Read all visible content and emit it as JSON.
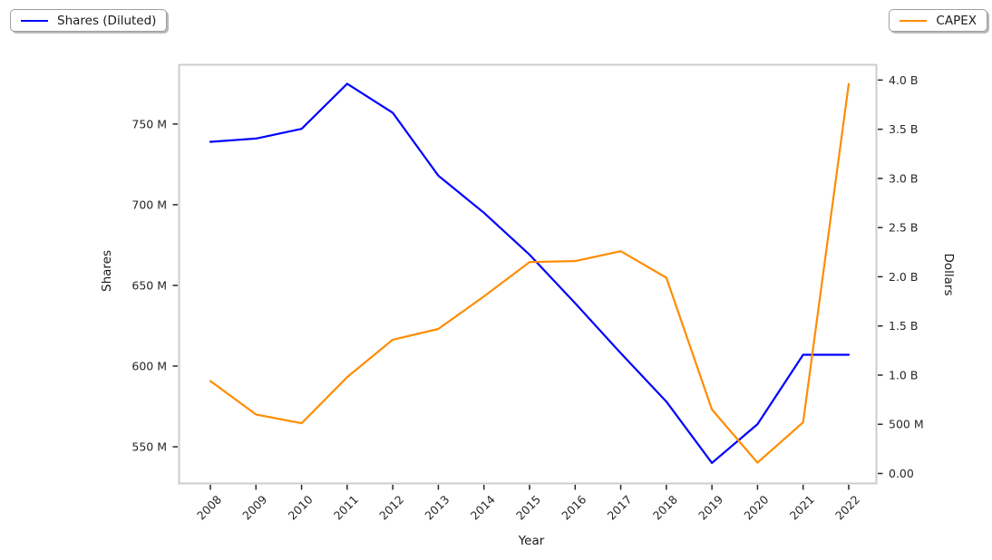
{
  "figure": {
    "background": "#ffffff",
    "frame_color": "#cccccc",
    "tick_color": "#262626",
    "text_color": "#262626"
  },
  "chart_data": {
    "type": "line",
    "title": "",
    "xlabel": "Year",
    "grid": false,
    "x": [
      "2008",
      "2009",
      "2010",
      "2011",
      "2012",
      "2013",
      "2014",
      "2015",
      "2016",
      "2017",
      "2018",
      "2019",
      "2020",
      "2021",
      "2022"
    ],
    "series": [
      {
        "name": "Shares (Diluted)",
        "color": "#0000ff",
        "axis": "left",
        "units": "millions of shares",
        "values": [
          739,
          741,
          747,
          775,
          757,
          718,
          695,
          669,
          639,
          608,
          578,
          540,
          564,
          607,
          607
        ]
      },
      {
        "name": "CAPEX",
        "color": "#ff8c00",
        "axis": "right",
        "units": "billions of dollars",
        "values": [
          0.94,
          0.6,
          0.51,
          0.98,
          1.36,
          1.47,
          1.8,
          2.15,
          2.16,
          2.26,
          1.99,
          0.65,
          0.11,
          0.52,
          3.96
        ]
      }
    ],
    "left_axis": {
      "label": "Shares",
      "tick_labels": [
        "550 M",
        "600 M",
        "650 M",
        "700 M",
        "750 M"
      ],
      "tick_values": [
        550,
        600,
        650,
        700,
        750
      ],
      "range": [
        527,
        787
      ]
    },
    "right_axis": {
      "label": "Dollars",
      "tick_labels": [
        "0.00",
        "500 M",
        "1.0 B",
        "1.5 B",
        "2.0 B",
        "2.5 B",
        "3.0 B",
        "3.5 B",
        "4.0 B"
      ],
      "tick_values": [
        0,
        0.5,
        1.0,
        1.5,
        2.0,
        2.5,
        3.0,
        3.5,
        4.0
      ],
      "range": [
        -0.106,
        4.16
      ]
    },
    "legend_position": [
      "top-left",
      "top-right"
    ]
  }
}
